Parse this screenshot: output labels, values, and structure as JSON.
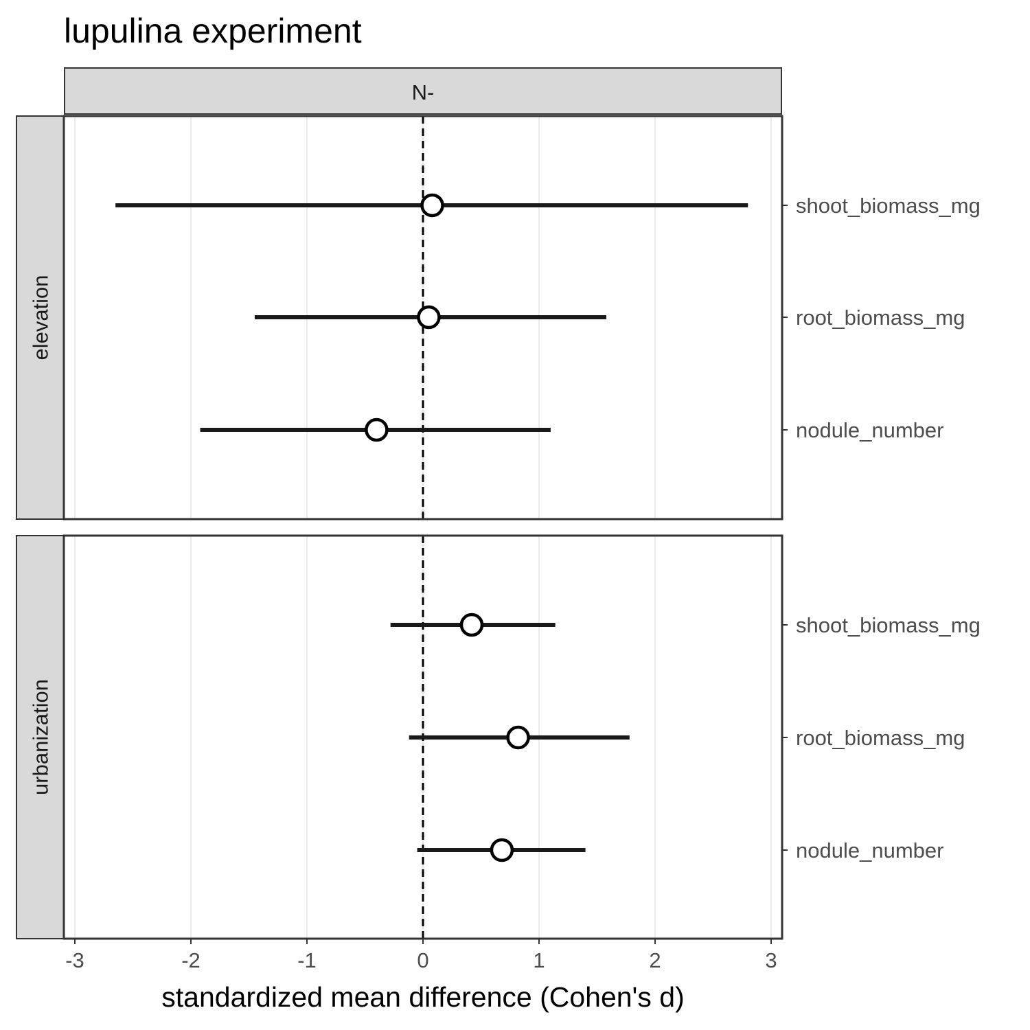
{
  "chart_data": {
    "type": "scatter",
    "title": "lupulina experiment",
    "xlabel": "standardized mean difference (Cohen's d)",
    "ylabel": "",
    "xlim": [
      -3.1,
      3.1
    ],
    "x_ticks": [
      "-3",
      "-2",
      "-1",
      "0",
      "1",
      "2",
      "3"
    ],
    "x_tick_values": [
      -3,
      -2,
      -1,
      0,
      1,
      2,
      3
    ],
    "reference_line": 0,
    "grid": true,
    "legend": "none",
    "column_facets": [
      "N-"
    ],
    "row_facets": [
      "elevation",
      "urbanization"
    ],
    "categories": [
      "shoot_biomass_mg",
      "root_biomass_mg",
      "nodule_number"
    ],
    "panels": [
      {
        "row": "elevation",
        "column": "N-",
        "points": [
          {
            "category": "shoot_biomass_mg",
            "estimate": 0.08,
            "lower": -2.65,
            "upper": 2.8
          },
          {
            "category": "root_biomass_mg",
            "estimate": 0.05,
            "lower": -1.45,
            "upper": 1.58
          },
          {
            "category": "nodule_number",
            "estimate": -0.4,
            "lower": -1.92,
            "upper": 1.1
          }
        ]
      },
      {
        "row": "urbanization",
        "column": "N-",
        "points": [
          {
            "category": "shoot_biomass_mg",
            "estimate": 0.42,
            "lower": -0.28,
            "upper": 1.14
          },
          {
            "category": "root_biomass_mg",
            "estimate": 0.82,
            "lower": -0.12,
            "upper": 1.78
          },
          {
            "category": "nodule_number",
            "estimate": 0.68,
            "lower": -0.05,
            "upper": 1.4
          }
        ]
      }
    ],
    "colors": {
      "interval": "#1a1a1a",
      "point_fill": "#ffffff",
      "point_stroke": "#000000",
      "panel_border": "#333333",
      "strip_fill": "#d9d9d9",
      "grid": "#ebebeb",
      "axis_text": "#4d4d4d"
    }
  }
}
